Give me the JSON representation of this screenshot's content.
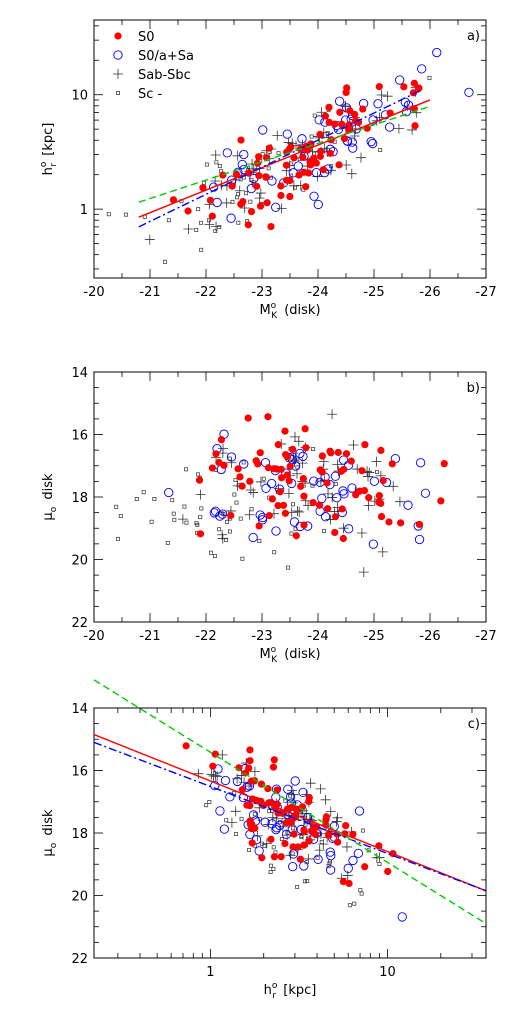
{
  "chart_data": [
    {
      "panel": "a)",
      "type": "scatter",
      "xlabel": "M",
      "xlabel_sup": "o",
      "xlabel_sub": "K",
      "xlabel_suffix": "(disk)",
      "ylabel": "h",
      "ylabel_sup": "o",
      "ylabel_sub": "r",
      "ylabel_suffix": "[kpc]",
      "x_reversed": true,
      "xlim": [
        -20,
        -27
      ],
      "ylim": [
        0.25,
        45
      ],
      "yscale": "log",
      "xticks": [
        "-20",
        "-21",
        "-22",
        "-23",
        "-24",
        "-25",
        "-26",
        "-27"
      ],
      "yticks": [
        "1",
        "10"
      ],
      "legend": {
        "position": "top-left",
        "entries": [
          {
            "label": "S0",
            "symbol": "filled-circle",
            "color": "#ff0000"
          },
          {
            "label": "S0/a+Sa",
            "symbol": "open-circle",
            "color": "#0000ff"
          },
          {
            "label": "Sab-Sbc",
            "symbol": "plus",
            "color": "#333333"
          },
          {
            "label": "Sc -",
            "symbol": "open-square",
            "color": "#333333"
          }
        ]
      },
      "fit_lines": [
        {
          "color": "#ff0000",
          "style": "solid",
          "from": [
            -20.8,
            0.85
          ],
          "to": [
            -26.0,
            9.0
          ]
        },
        {
          "color": "#0000ff",
          "style": "dash-dot",
          "from": [
            -20.8,
            0.7
          ],
          "to": [
            -25.8,
            10.7
          ]
        },
        {
          "color": "#00cc00",
          "style": "dashed",
          "from": [
            -20.8,
            1.15
          ],
          "to": [
            -26.0,
            7.9
          ]
        }
      ]
    },
    {
      "panel": "b)",
      "type": "scatter",
      "xlabel": "M",
      "xlabel_sup": "o",
      "xlabel_sub": "K",
      "xlabel_suffix": "(disk)",
      "ylabel": "μ",
      "ylabel_sub": "o",
      "ylabel_suffix": "disk",
      "x_reversed": true,
      "y_reversed": true,
      "xlim": [
        -20,
        -27
      ],
      "ylim": [
        22,
        14
      ],
      "xticks": [
        "-20",
        "-21",
        "-22",
        "-23",
        "-24",
        "-25",
        "-26",
        "-27"
      ],
      "yticks": [
        "14",
        "16",
        "18",
        "20",
        "22"
      ]
    },
    {
      "panel": "c)",
      "type": "scatter",
      "xlabel": "h",
      "xlabel_sup": "o",
      "xlabel_sub": "r",
      "xlabel_suffix": "[kpc]",
      "ylabel": "μ",
      "ylabel_sub": "o",
      "ylabel_suffix": "disk",
      "xscale": "log",
      "y_reversed": true,
      "xlim": [
        0.22,
        36
      ],
      "ylim": [
        22,
        14
      ],
      "xticks": [
        "1",
        "10"
      ],
      "yticks": [
        "14",
        "16",
        "18",
        "20",
        "22"
      ],
      "fit_lines": [
        {
          "color": "#ff0000",
          "style": "solid",
          "from": [
            0.22,
            14.85
          ],
          "to": [
            36,
            19.85
          ]
        },
        {
          "color": "#0000ff",
          "style": "dash-dot",
          "from": [
            0.22,
            15.1
          ],
          "to": [
            36,
            19.85
          ]
        },
        {
          "color": "#00cc00",
          "style": "dashed",
          "from": [
            0.22,
            13.1
          ],
          "to": [
            36,
            20.9
          ]
        }
      ]
    }
  ]
}
